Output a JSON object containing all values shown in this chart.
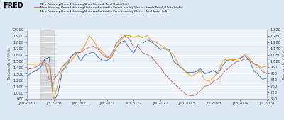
{
  "title": "FRED",
  "legend": [
    "New Privately-Owned Housing Units Started: Total Units (left)",
    "New Privately-Owned Housing Units Authorized in Permit-Issuing Places: Single-Family Units (right)",
    "New Privately-Owned Housing Units Authorized in Permit-Issuing Places: Total Units (left)"
  ],
  "line_colors": [
    "#4472c4",
    "#c07878",
    "#e8a020"
  ],
  "background_color": "#dce9f5",
  "plot_bg": "#edf2f9",
  "shaded_region": [
    3,
    6
  ],
  "left_ylim": [
    900,
    2000
  ],
  "right_ylim": [
    660,
    1320
  ],
  "left_yticks": [
    900,
    1000,
    1100,
    1200,
    1300,
    1400,
    1500,
    1600,
    1700,
    1800,
    1900,
    2000
  ],
  "right_yticks": [
    660,
    720,
    780,
    840,
    900,
    960,
    1020,
    1080,
    1140,
    1200,
    1260,
    1320
  ],
  "xtick_labels": [
    "Jan 2020",
    "Jul 2020",
    "Jan 2021",
    "Jul 2021",
    "Jan 2022",
    "Jul 2022",
    "Jan 2023",
    "Jul 2023",
    "Jan 2024",
    "Jul 2024"
  ],
  "xtick_pos": [
    0,
    6,
    12,
    18,
    24,
    30,
    36,
    42,
    48,
    54
  ],
  "ylabel_left": "Thousands of Units",
  "ylabel_right": "Thousands of Units",
  "n_points": 55,
  "blue_line": [
    1265,
    1310,
    1350,
    1390,
    1530,
    1560,
    850,
    1000,
    1350,
    1430,
    1580,
    1640,
    1500,
    1590,
    1620,
    1640,
    1560,
    1500,
    1510,
    1560,
    1700,
    1790,
    1820,
    1700,
    1630,
    1760,
    1770,
    1840,
    1800,
    1750,
    1680,
    1700,
    1680,
    1500,
    1430,
    1380,
    1320,
    1320,
    1330,
    1380,
    1300,
    1320,
    1350,
    1300,
    1430,
    1510,
    1500,
    1530,
    1540,
    1580,
    1520,
    1350,
    1290,
    1210,
    1230
  ],
  "red_line": [
    940,
    950,
    960,
    990,
    1020,
    840,
    840,
    900,
    970,
    1010,
    1060,
    1100,
    1100,
    1130,
    1150,
    1160,
    1130,
    1080,
    1050,
    1080,
    1180,
    1230,
    1260,
    1230,
    1150,
    1160,
    1100,
    1080,
    1060,
    1010,
    960,
    900,
    850,
    810,
    770,
    730,
    700,
    690,
    700,
    740,
    780,
    790,
    830,
    850,
    900,
    940,
    980,
    1010,
    1020,
    1040,
    1030,
    1000,
    980,
    920,
    900
  ],
  "orange_line": [
    1450,
    1450,
    1450,
    1460,
    1480,
    1430,
    870,
    1150,
    1410,
    1450,
    1510,
    1600,
    1640,
    1740,
    1900,
    1820,
    1700,
    1650,
    1560,
    1560,
    1700,
    1820,
    1900,
    1900,
    1870,
    1900,
    1870,
    1900,
    1820,
    1800,
    1750,
    1700,
    1650,
    1600,
    1450,
    1380,
    1310,
    1260,
    1300,
    1350,
    1200,
    1180,
    1240,
    1330,
    1500,
    1530,
    1520,
    1520,
    1550,
    1600,
    1550,
    1450,
    1430,
    1400,
    1420
  ]
}
